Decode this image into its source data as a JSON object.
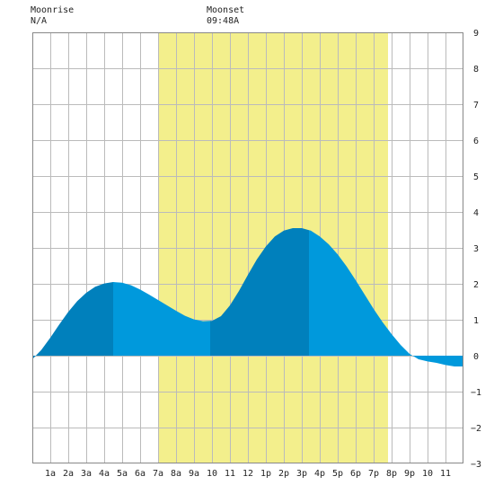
{
  "header": {
    "moonrise_label": "Moonrise",
    "moonrise_value": "N/A",
    "moonset_label": "Moonset",
    "moonset_value": "09:48A"
  },
  "chart_data": {
    "type": "area",
    "title": "",
    "xlabel": "",
    "ylabel": "",
    "x_range_hours": [
      0,
      24
    ],
    "ylim": [
      -3,
      9
    ],
    "y_ticks": [
      -3,
      -2,
      -1,
      0,
      1,
      2,
      3,
      4,
      5,
      6,
      7,
      8,
      9
    ],
    "x_tick_labels": [
      "1a",
      "2a",
      "3a",
      "4a",
      "5a",
      "6a",
      "7a",
      "8a",
      "9a",
      "10",
      "11",
      "12",
      "1p",
      "2p",
      "3p",
      "4p",
      "5p",
      "6p",
      "7p",
      "8p",
      "9p",
      "10",
      "11"
    ],
    "x_tick_hours": [
      1,
      2,
      3,
      4,
      5,
      6,
      7,
      8,
      9,
      10,
      11,
      12,
      13,
      14,
      15,
      16,
      17,
      18,
      19,
      20,
      21,
      22,
      23
    ],
    "grid": true,
    "daylight_hours": [
      7.0,
      19.8
    ],
    "tide_events": [
      {
        "type": "low",
        "hour": 0.0,
        "height": -0.1
      },
      {
        "type": "high",
        "hour": 4.5,
        "height": 2.05
      },
      {
        "type": "low",
        "hour": 9.9,
        "height": 0.95
      },
      {
        "type": "high",
        "hour": 15.4,
        "height": 3.55
      },
      {
        "type": "low",
        "hour": 23.6,
        "height": -0.3
      }
    ],
    "series": [
      {
        "values": [
          [
            0.0,
            -0.1
          ],
          [
            0.5,
            0.16
          ],
          [
            1.0,
            0.5
          ],
          [
            1.5,
            0.87
          ],
          [
            2.0,
            1.22
          ],
          [
            2.5,
            1.52
          ],
          [
            3.0,
            1.75
          ],
          [
            3.5,
            1.92
          ],
          [
            4.0,
            2.01
          ],
          [
            4.5,
            2.05
          ],
          [
            5.0,
            2.03
          ],
          [
            5.5,
            1.96
          ],
          [
            6.0,
            1.84
          ],
          [
            6.5,
            1.7
          ],
          [
            7.0,
            1.55
          ],
          [
            7.5,
            1.4
          ],
          [
            8.0,
            1.25
          ],
          [
            8.5,
            1.11
          ],
          [
            9.0,
            1.01
          ],
          [
            9.5,
            0.96
          ],
          [
            10.0,
            0.97
          ],
          [
            10.5,
            1.1
          ],
          [
            11.0,
            1.4
          ],
          [
            11.5,
            1.8
          ],
          [
            12.0,
            2.25
          ],
          [
            12.5,
            2.68
          ],
          [
            13.0,
            3.04
          ],
          [
            13.5,
            3.32
          ],
          [
            14.0,
            3.48
          ],
          [
            14.5,
            3.55
          ],
          [
            15.0,
            3.55
          ],
          [
            15.5,
            3.48
          ],
          [
            16.0,
            3.32
          ],
          [
            16.5,
            3.1
          ],
          [
            17.0,
            2.82
          ],
          [
            17.5,
            2.48
          ],
          [
            18.0,
            2.1
          ],
          [
            18.5,
            1.7
          ],
          [
            19.0,
            1.3
          ],
          [
            19.5,
            0.93
          ],
          [
            20.0,
            0.6
          ],
          [
            20.5,
            0.3
          ],
          [
            21.0,
            0.05
          ],
          [
            21.5,
            -0.1
          ],
          [
            22.0,
            -0.16
          ],
          [
            22.5,
            -0.2
          ],
          [
            23.0,
            -0.26
          ],
          [
            23.5,
            -0.3
          ],
          [
            24.0,
            -0.3
          ]
        ]
      }
    ],
    "colors": {
      "daylight": "#f3ef8c",
      "tide_light": "#0099dc",
      "tide_dark": "#0080bc",
      "grid": "#bbbbbb"
    }
  }
}
